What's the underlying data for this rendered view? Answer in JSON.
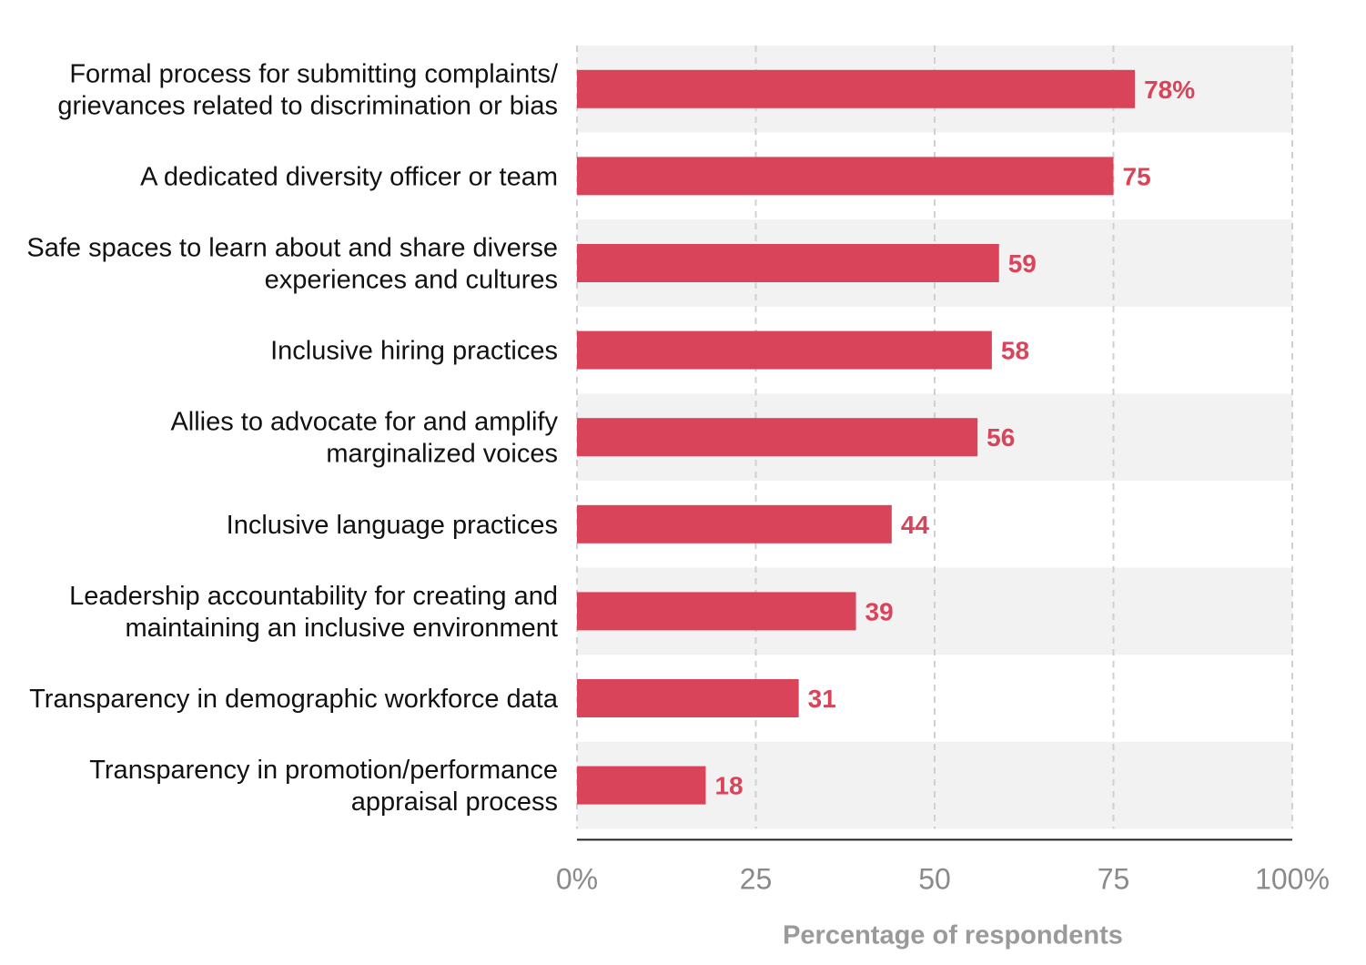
{
  "chart_data": {
    "type": "bar",
    "orientation": "horizontal",
    "categories": [
      [
        "Formal process for submitting complaints/",
        "grievances related to discrimination or bias"
      ],
      [
        "A dedicated diversity officer or team"
      ],
      [
        "Safe spaces to learn about and share diverse",
        "experiences and cultures"
      ],
      [
        "Inclusive hiring practices"
      ],
      [
        "Allies to advocate for and amplify",
        "marginalized voices"
      ],
      [
        "Inclusive language practices"
      ],
      [
        "Leadership accountability for creating and",
        "maintaining an inclusive environment"
      ],
      [
        "Transparency in demographic workforce data"
      ],
      [
        "Transparency in promotion/performance",
        "appraisal process"
      ]
    ],
    "values": [
      78,
      75,
      59,
      58,
      56,
      44,
      39,
      31,
      18
    ],
    "value_labels": [
      "78%",
      "75",
      "59",
      "58",
      "56",
      "44",
      "39",
      "31",
      "18"
    ],
    "xlim": [
      0,
      100
    ],
    "xticks": [
      0,
      25,
      50,
      75,
      100
    ],
    "xtick_labels": [
      "0%",
      "25",
      "50",
      "75",
      "100%"
    ],
    "xlabel": "Percentage of respondents",
    "grid": "vertical-dashed",
    "row_banding": true,
    "colors": {
      "bar": "#d9445a",
      "value_label": "#d9445a",
      "band": "#f2f2f2",
      "grid": "#d0d0d0",
      "axis": "#222222"
    }
  }
}
